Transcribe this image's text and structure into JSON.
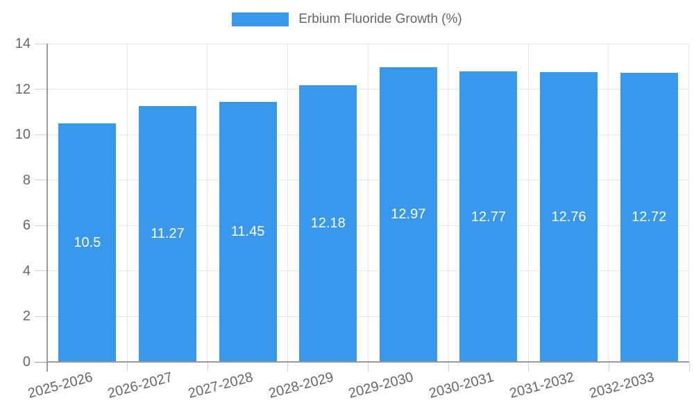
{
  "chart_data": {
    "type": "bar",
    "title": "Erbium Fluoride Growth (%)",
    "categories": [
      "2025-2026",
      "2026-2027",
      "2027-2028",
      "2028-2029",
      "2029-2030",
      "2030-2031",
      "2031-2032",
      "2032-2033"
    ],
    "values": [
      10.5,
      11.27,
      11.45,
      12.18,
      12.97,
      12.77,
      12.76,
      12.72
    ],
    "value_labels": [
      "10.5",
      "11.27",
      "11.45",
      "12.18",
      "12.97",
      "12.77",
      "12.76",
      "12.72"
    ],
    "xlabel": "",
    "ylabel": "",
    "ylim": [
      0,
      14
    ],
    "yticks": [
      0,
      2,
      4,
      6,
      8,
      10,
      12,
      14
    ],
    "grid": true,
    "legend_position": "top-center",
    "x_label_rotation_deg": -15,
    "colors": {
      "bar": "#3899EC",
      "grid": "#E6E6E6",
      "axis": "#999999",
      "tick": "#CFCFCF",
      "text": "#666666",
      "value_label": "#FFFFFF",
      "background": "#FFFFFF"
    }
  }
}
